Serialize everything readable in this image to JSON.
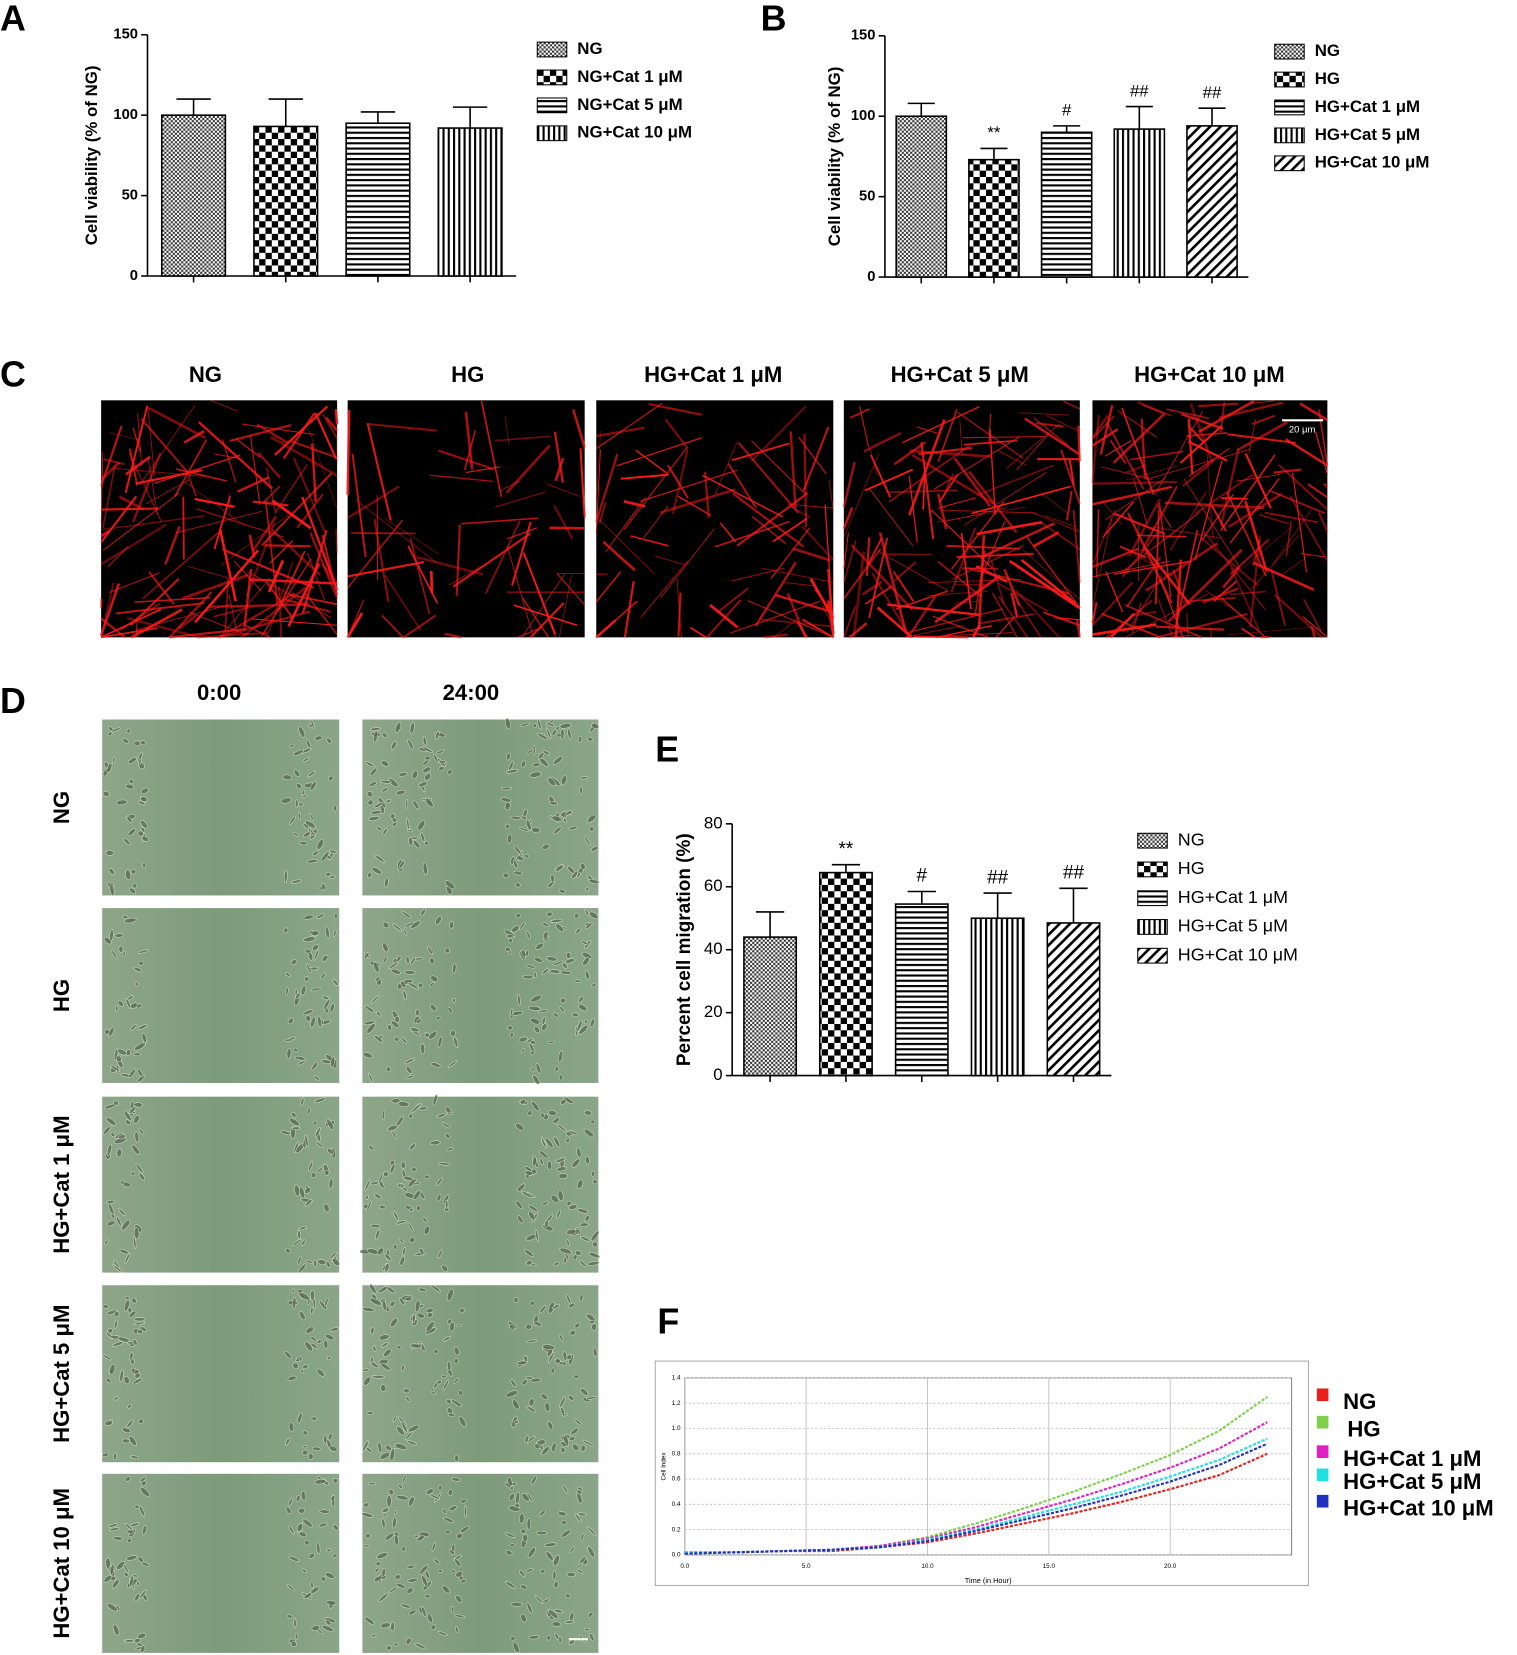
{
  "panel_labels": [
    "A",
    "B",
    "C",
    "D",
    "E",
    "F"
  ],
  "chart_data": [
    {
      "type": "bar",
      "ylabel": "Cell viability (% of NG)",
      "categories": [
        "NG",
        "NG+Cat 1 μM",
        "NG+Cat 5 μM",
        "NG+Cat 10 μM"
      ],
      "values": [
        100,
        93,
        95,
        92
      ],
      "errors": [
        10,
        17,
        7,
        13
      ],
      "color": "#000000",
      "ylim": [
        0,
        150
      ],
      "yticks": [
        0,
        50,
        100,
        150
      ]
    },
    {
      "type": "bar",
      "ylabel": "Cell viability (% of NG)",
      "categories": [
        "NG",
        "HG",
        "HG+Cat 1 μM",
        "HG+Cat 5 μM",
        "HG+Cat 10 μM"
      ],
      "values": [
        100,
        73,
        90,
        92,
        94
      ],
      "errors": [
        8,
        7,
        4,
        14,
        11
      ],
      "annotations": [
        null,
        "**",
        "#",
        "##",
        "##"
      ],
      "color": "#000000",
      "ylim": [
        0,
        150
      ],
      "yticks": [
        0,
        50,
        100,
        150
      ]
    },
    {
      "type": "bar",
      "ylabel": "Percent cell migration (%)",
      "categories": [
        "NG",
        "HG",
        "HG+Cat 1 μM",
        "HG+Cat 5 μM",
        "HG+Cat 10 μM"
      ],
      "values": [
        44,
        64.5,
        54.5,
        50,
        48.5
      ],
      "errors": [
        8,
        2.5,
        4,
        8,
        11
      ],
      "annotations": [
        null,
        "**",
        "#",
        "##",
        "##"
      ],
      "color": "#000000",
      "ylim": [
        0,
        80
      ],
      "yticks": [
        0,
        20,
        40,
        60,
        80
      ]
    },
    {
      "type": "line",
      "xlabel": "Time (in Hour)",
      "ylabel": "Cell Index",
      "x": [
        0,
        2,
        4,
        6,
        8,
        10,
        12,
        14,
        16,
        18,
        20,
        22,
        24
      ],
      "series": [
        {
          "name": "NG",
          "color": "#e8201e",
          "values": [
            0.02,
            0.02,
            0.03,
            0.03,
            0.06,
            0.1,
            0.17,
            0.25,
            0.33,
            0.42,
            0.52,
            0.63,
            0.8
          ]
        },
        {
          "name": "HG",
          "color": "#7ed04a",
          "values": [
            0.02,
            0.02,
            0.03,
            0.04,
            0.07,
            0.14,
            0.25,
            0.37,
            0.5,
            0.64,
            0.79,
            0.98,
            1.25
          ]
        },
        {
          "name": "HG+Cat 1 μM",
          "color": "#e020c0",
          "values": [
            0.02,
            0.02,
            0.03,
            0.04,
            0.07,
            0.13,
            0.22,
            0.33,
            0.44,
            0.56,
            0.69,
            0.84,
            1.05
          ]
        },
        {
          "name": "HG+Cat 5 μM",
          "color": "#20e0e0",
          "values": [
            0.02,
            0.02,
            0.03,
            0.04,
            0.06,
            0.12,
            0.2,
            0.3,
            0.4,
            0.5,
            0.62,
            0.75,
            0.92
          ]
        },
        {
          "name": "HG+Cat 10 μM",
          "color": "#2030c0",
          "values": [
            0.01,
            0.02,
            0.03,
            0.04,
            0.06,
            0.11,
            0.19,
            0.28,
            0.37,
            0.47,
            0.58,
            0.71,
            0.88
          ]
        }
      ],
      "xlim": [
        0,
        25
      ],
      "ylim": [
        0,
        1.4
      ],
      "xticks": [
        {
          "value": 0,
          "label": "0.0"
        },
        {
          "value": 5,
          "label": "5.0"
        },
        {
          "value": 10,
          "label": "10.0"
        },
        {
          "value": 15,
          "label": "15.0"
        },
        {
          "value": 20,
          "label": "20.0"
        }
      ],
      "yticks": [
        {
          "value": 0,
          "label": "0.0"
        },
        0.2,
        0.4,
        0.6,
        0.8,
        {
          "value": 1,
          "label": "1.0"
        },
        1.2,
        1.4
      ],
      "grid": true
    }
  ],
  "staining": {
    "titles": [
      "NG",
      "HG",
      "HG+Cat 1 μM",
      "HG+Cat 5 μM",
      "HG+Cat 10 μM"
    ],
    "scale_bar": "20 μm"
  },
  "scratch": {
    "columns": [
      "0:00",
      "24:00"
    ],
    "rows": [
      "NG",
      "HG",
      "HG+Cat 1 μM",
      "HG+Cat 5 μM",
      "HG+Cat 10 μM"
    ]
  }
}
